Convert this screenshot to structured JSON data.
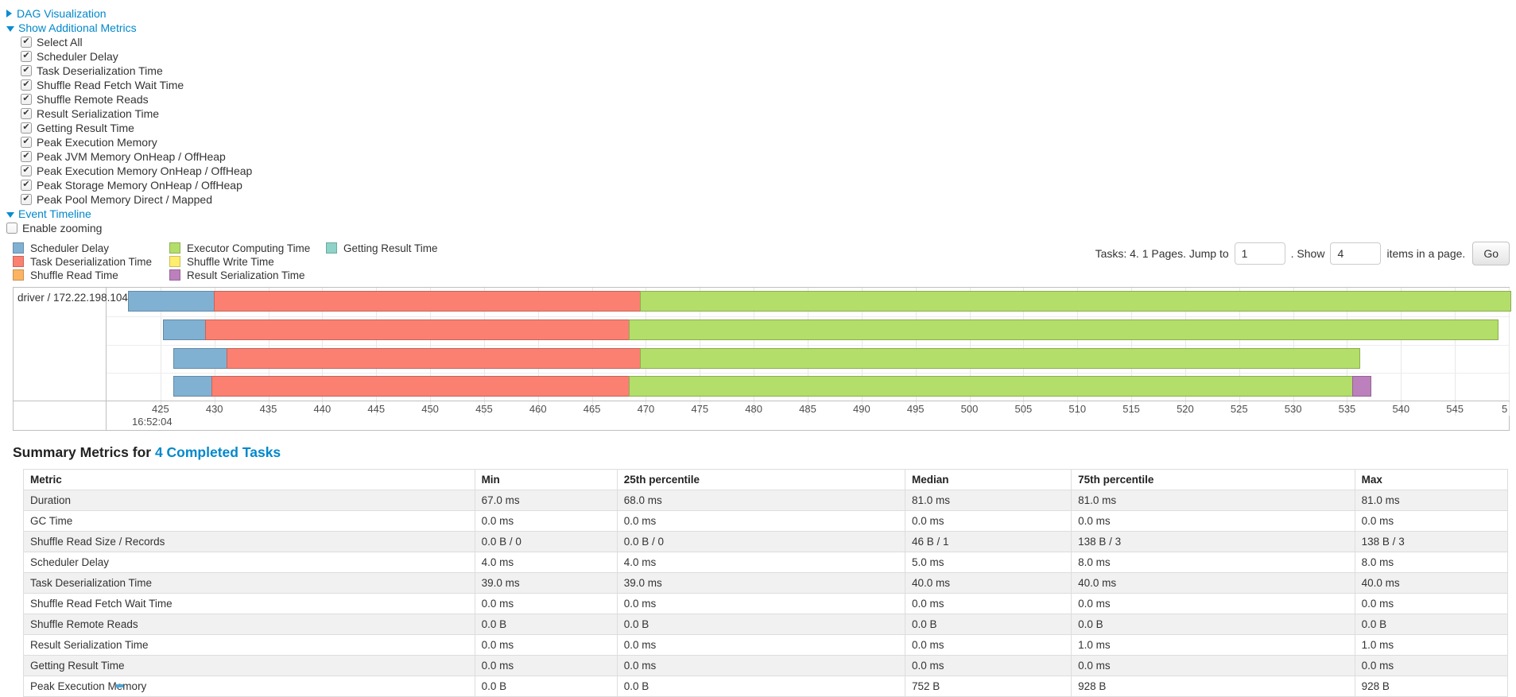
{
  "toggles": {
    "dag": {
      "label": "DAG Visualization",
      "state": "collapsed"
    },
    "metrics": {
      "label": "Show Additional Metrics",
      "state": "expanded"
    },
    "timeline": {
      "label": "Event Timeline",
      "state": "expanded"
    }
  },
  "metrics_checkboxes": [
    "Select All",
    "Scheduler Delay",
    "Task Deserialization Time",
    "Shuffle Read Fetch Wait Time",
    "Shuffle Remote Reads",
    "Result Serialization Time",
    "Getting Result Time",
    "Peak Execution Memory",
    "Peak JVM Memory OnHeap / OffHeap",
    "Peak Execution Memory OnHeap / OffHeap",
    "Peak Storage Memory OnHeap / OffHeap",
    "Peak Pool Memory Direct / Mapped"
  ],
  "enable_zooming_label": "Enable zooming",
  "colors": {
    "scheduler_delay": "#80B1D3",
    "task_deserialization": "#FB8072",
    "shuffle_read": "#FDB462",
    "executor_computing": "#B3DE69",
    "shuffle_write": "#FFED6F",
    "result_serialization": "#BC80BD",
    "getting_result": "#8DD3C7",
    "link": "#0088cc"
  },
  "legend": {
    "columns": [
      [
        {
          "label": "Scheduler Delay",
          "color_key": "scheduler_delay"
        },
        {
          "label": "Task Deserialization Time",
          "color_key": "task_deserialization"
        },
        {
          "label": "Shuffle Read Time",
          "color_key": "shuffle_read"
        }
      ],
      [
        {
          "label": "Executor Computing Time",
          "color_key": "executor_computing"
        },
        {
          "label": "Shuffle Write Time",
          "color_key": "shuffle_write"
        },
        {
          "label": "Result Serialization Time",
          "color_key": "result_serialization"
        }
      ],
      [
        {
          "label": "Getting Result Time",
          "color_key": "getting_result"
        }
      ]
    ]
  },
  "pagination": {
    "prefix": "Tasks: 4. 1 Pages. Jump to",
    "jump_value": "1",
    "mid": ". Show",
    "show_value": "4",
    "suffix": "items in a page.",
    "go_label": "Go"
  },
  "timeline": {
    "group_label": "driver / 172.22.198.104",
    "axis": {
      "t_min": 420,
      "t_max": 550,
      "ticks": [
        425,
        430,
        435,
        440,
        445,
        450,
        455,
        460,
        465,
        470,
        475,
        480,
        485,
        490,
        495,
        500,
        505,
        510,
        515,
        520,
        525,
        530,
        535,
        540,
        545
      ],
      "clipped_tick_time": 550,
      "clipped_tick_label": "5",
      "major_label": "16:52:04"
    },
    "tasks": [
      {
        "start": 422.0,
        "segments": [
          {
            "type": "scheduler_delay",
            "end": 430.0
          },
          {
            "type": "task_deserialization",
            "end": 469.6
          },
          {
            "type": "executor_computing",
            "end": 550.4
          }
        ]
      },
      {
        "start": 425.2,
        "segments": [
          {
            "type": "scheduler_delay",
            "end": 429.2
          },
          {
            "type": "task_deserialization",
            "end": 468.6
          },
          {
            "type": "executor_computing",
            "end": 549.2
          }
        ]
      },
      {
        "start": 426.2,
        "segments": [
          {
            "type": "scheduler_delay",
            "end": 431.2
          },
          {
            "type": "task_deserialization",
            "end": 469.6
          },
          {
            "type": "executor_computing",
            "end": 536.4
          }
        ]
      },
      {
        "start": 426.2,
        "segments": [
          {
            "type": "scheduler_delay",
            "end": 429.8
          },
          {
            "type": "task_deserialization",
            "end": 468.6
          },
          {
            "type": "executor_computing",
            "end": 535.7
          },
          {
            "type": "result_serialization",
            "end": 537.5
          }
        ]
      }
    ]
  },
  "summary": {
    "title": "Summary Metrics for ",
    "title_link": "4 Completed Tasks",
    "columns": [
      "Metric",
      "Min",
      "25th percentile",
      "Median",
      "75th percentile",
      "Max"
    ],
    "rows": [
      {
        "metric": "Duration",
        "values": [
          "67.0 ms",
          "68.0 ms",
          "81.0 ms",
          "81.0 ms",
          "81.0 ms"
        ]
      },
      {
        "metric": "GC Time",
        "values": [
          "0.0 ms",
          "0.0 ms",
          "0.0 ms",
          "0.0 ms",
          "0.0 ms"
        ]
      },
      {
        "metric": "Shuffle Read Size / Records",
        "values": [
          "0.0 B / 0",
          "0.0 B / 0",
          "46 B / 1",
          "138 B / 3",
          "138 B / 3"
        ]
      },
      {
        "metric": "Scheduler Delay",
        "values": [
          "4.0 ms",
          "4.0 ms",
          "5.0 ms",
          "8.0 ms",
          "8.0 ms"
        ]
      },
      {
        "metric": "Task Deserialization Time",
        "values": [
          "39.0 ms",
          "39.0 ms",
          "40.0 ms",
          "40.0 ms",
          "40.0 ms"
        ]
      },
      {
        "metric": "Shuffle Read Fetch Wait Time",
        "values": [
          "0.0 ms",
          "0.0 ms",
          "0.0 ms",
          "0.0 ms",
          "0.0 ms"
        ]
      },
      {
        "metric": "Shuffle Remote Reads",
        "values": [
          "0.0 B",
          "0.0 B",
          "0.0 B",
          "0.0 B",
          "0.0 B"
        ]
      },
      {
        "metric": "Result Serialization Time",
        "values": [
          "0.0 ms",
          "0.0 ms",
          "0.0 ms",
          "1.0 ms",
          "1.0 ms"
        ]
      },
      {
        "metric": "Getting Result Time",
        "values": [
          "0.0 ms",
          "0.0 ms",
          "0.0 ms",
          "0.0 ms",
          "0.0 ms"
        ]
      },
      {
        "metric": "Peak Execution Memory",
        "values": [
          "0.0 B",
          "0.0 B",
          "752 B",
          "928 B",
          "928 B"
        ]
      }
    ]
  }
}
